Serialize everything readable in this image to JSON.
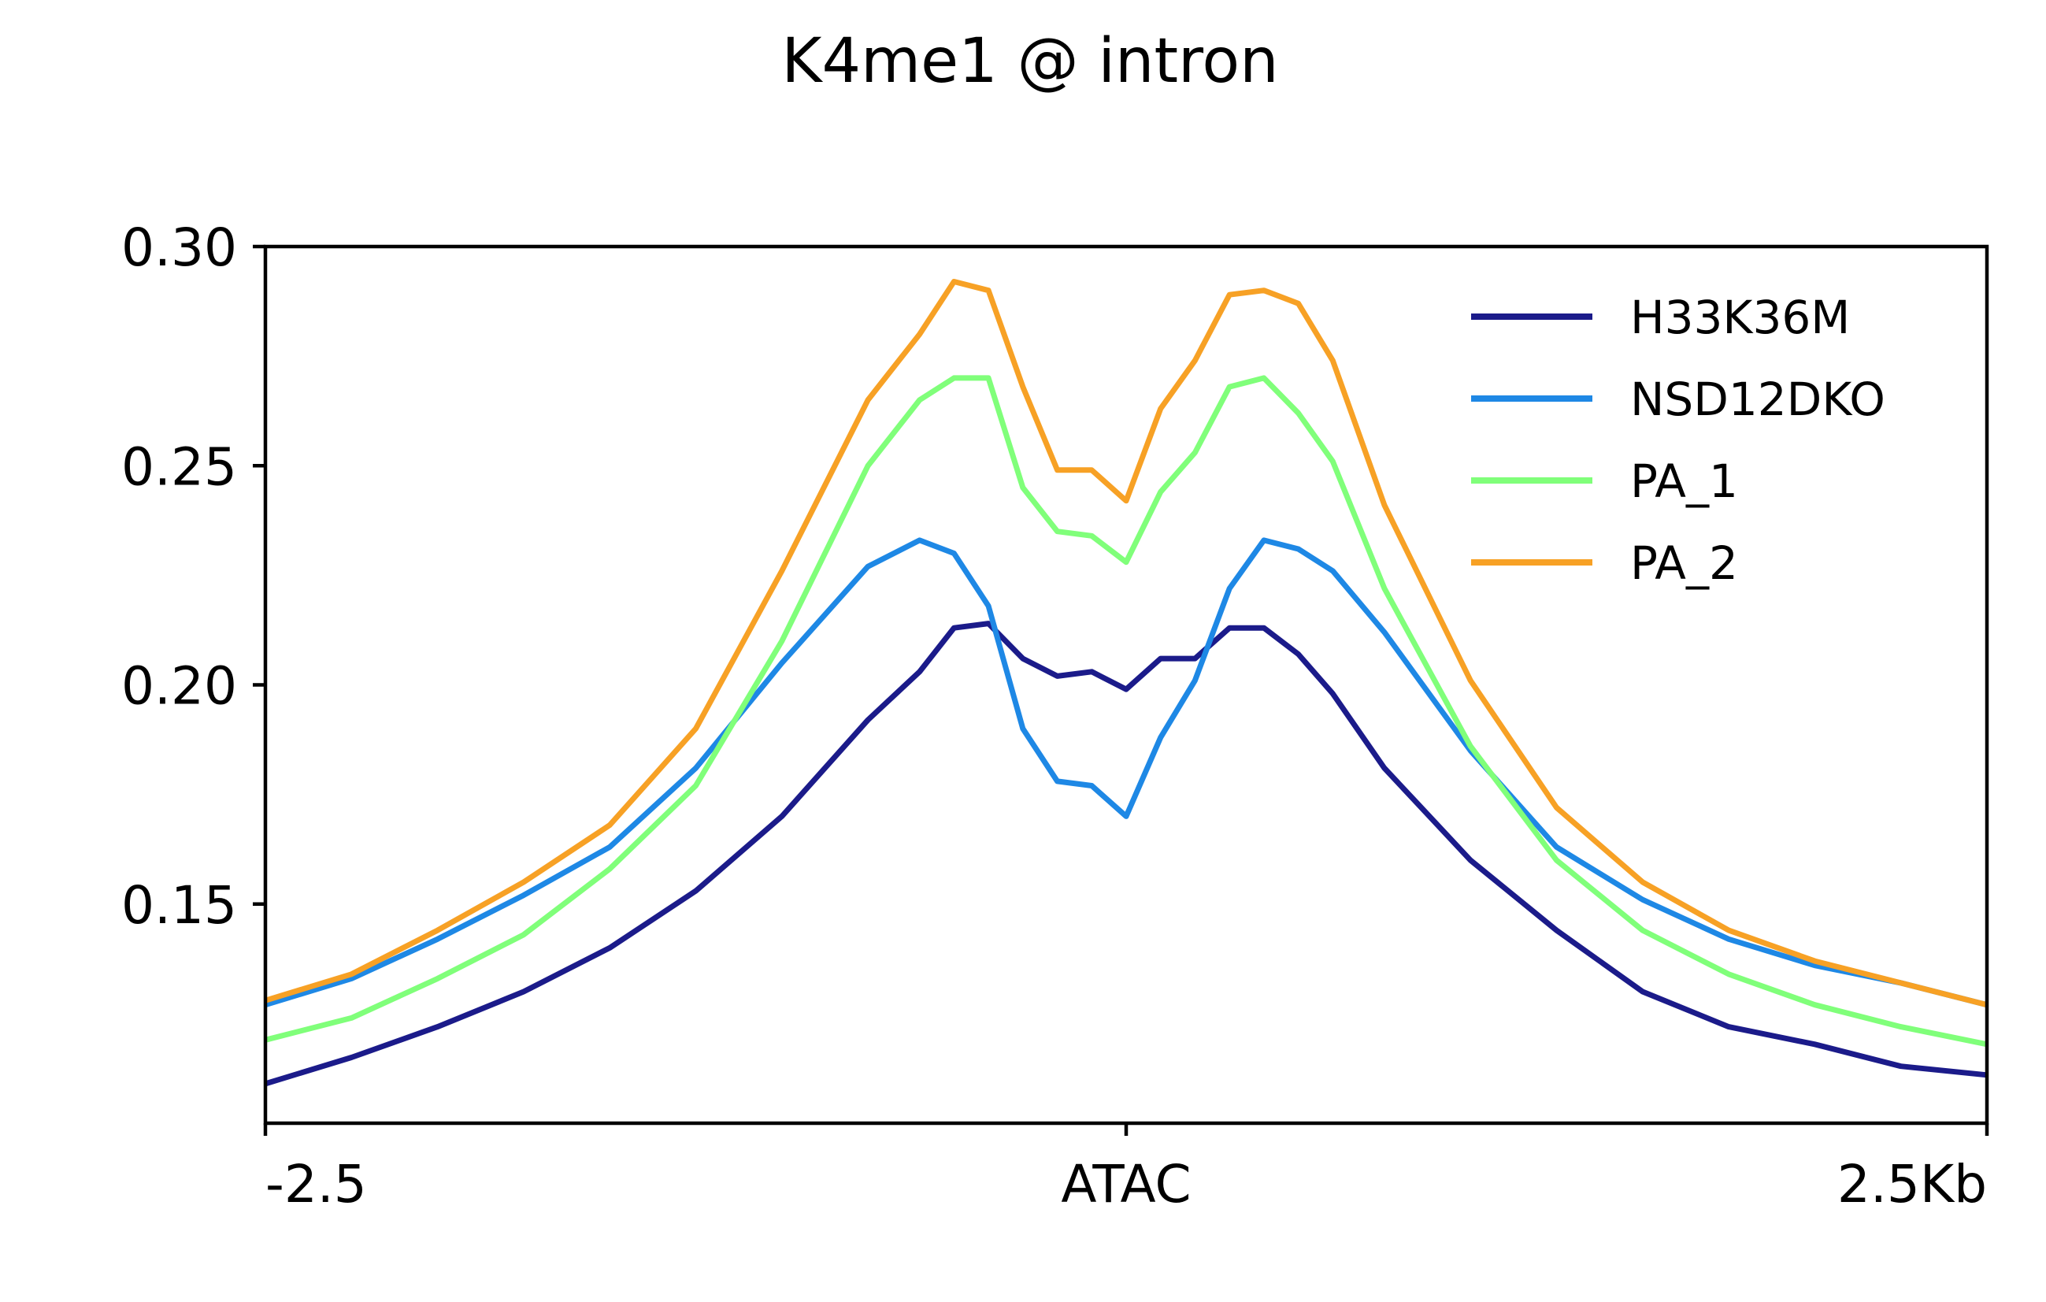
{
  "chart_data": {
    "type": "line",
    "title": "K4me1 @ intron",
    "xlabel": "",
    "ylabel": "",
    "x_range": [
      -2.5,
      2.5
    ],
    "ylim": [
      0.1,
      0.3
    ],
    "x_ticks": [
      {
        "value": -2.5,
        "label": "-2.5"
      },
      {
        "value": 0,
        "label": "ATAC"
      },
      {
        "value": 2.5,
        "label": "2.5Kb"
      }
    ],
    "y_ticks": [
      {
        "value": 0.15,
        "label": "0.15"
      },
      {
        "value": 0.2,
        "label": "0.20"
      },
      {
        "value": 0.25,
        "label": "0.25"
      },
      {
        "value": 0.3,
        "label": "0.30"
      }
    ],
    "grid": false,
    "legend_position": "top-right",
    "x": [
      -2.5,
      -2.25,
      -2.0,
      -1.75,
      -1.5,
      -1.25,
      -1.0,
      -0.75,
      -0.6,
      -0.5,
      -0.4,
      -0.3,
      -0.2,
      -0.1,
      0.0,
      0.1,
      0.2,
      0.3,
      0.4,
      0.5,
      0.6,
      0.75,
      1.0,
      1.25,
      1.5,
      1.75,
      2.0,
      2.25,
      2.5
    ],
    "series": [
      {
        "name": "H33K36M",
        "color": "#1b1b8a",
        "values": [
          0.109,
          0.115,
          0.122,
          0.13,
          0.14,
          0.153,
          0.17,
          0.192,
          0.203,
          0.213,
          0.214,
          0.206,
          0.202,
          0.203,
          0.199,
          0.206,
          0.206,
          0.213,
          0.213,
          0.207,
          0.198,
          0.181,
          0.16,
          0.144,
          0.13,
          0.122,
          0.118,
          0.113,
          0.111
        ]
      },
      {
        "name": "NSD12DKO",
        "color": "#1e88e5",
        "values": [
          0.127,
          0.133,
          0.142,
          0.152,
          0.163,
          0.181,
          0.205,
          0.227,
          0.233,
          0.23,
          0.218,
          0.19,
          0.178,
          0.177,
          0.17,
          0.188,
          0.201,
          0.222,
          0.233,
          0.231,
          0.226,
          0.212,
          0.185,
          0.163,
          0.151,
          0.142,
          0.136,
          0.132,
          0.127
        ]
      },
      {
        "name": "PA_1",
        "color": "#80ff7a",
        "values": [
          0.119,
          0.124,
          0.133,
          0.143,
          0.158,
          0.177,
          0.21,
          0.25,
          0.265,
          0.27,
          0.27,
          0.245,
          0.235,
          0.234,
          0.228,
          0.244,
          0.253,
          0.268,
          0.27,
          0.262,
          0.251,
          0.222,
          0.186,
          0.16,
          0.144,
          0.134,
          0.127,
          0.122,
          0.118
        ]
      },
      {
        "name": "PA_2",
        "color": "#f7a125",
        "values": [
          0.128,
          0.134,
          0.144,
          0.155,
          0.168,
          0.19,
          0.226,
          0.265,
          0.28,
          0.292,
          0.29,
          0.268,
          0.249,
          0.249,
          0.242,
          0.263,
          0.274,
          0.289,
          0.29,
          0.287,
          0.274,
          0.241,
          0.201,
          0.172,
          0.155,
          0.144,
          0.137,
          0.132,
          0.127
        ]
      }
    ]
  }
}
